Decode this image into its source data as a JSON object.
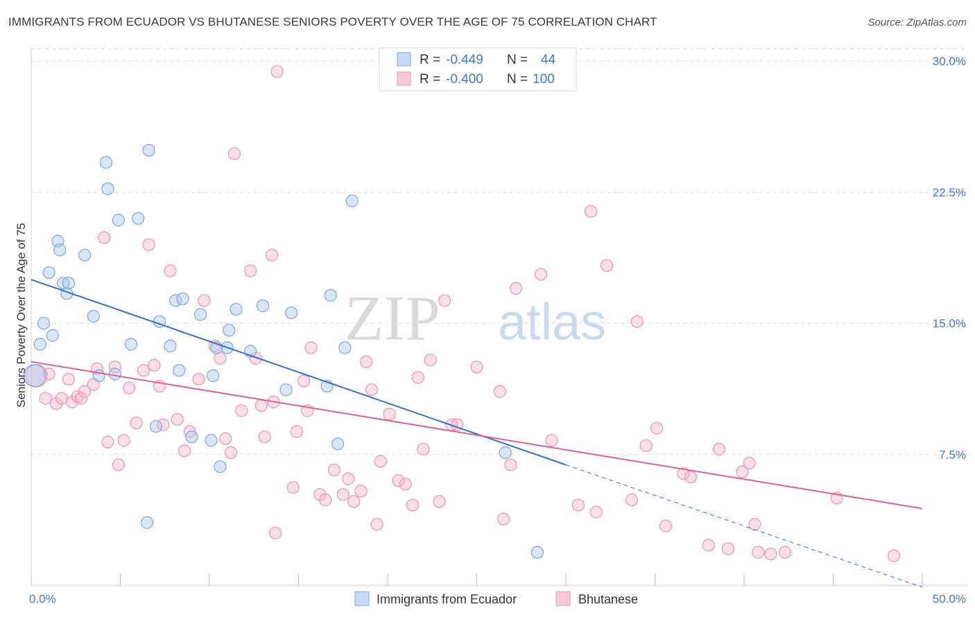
{
  "title": "IMMIGRANTS FROM ECUADOR VS BHUTANESE SENIORS POVERTY OVER THE AGE OF 75 CORRELATION CHART",
  "source": "Source: ZipAtlas.com",
  "watermark": {
    "zip": "ZIP",
    "atlas": "atlas"
  },
  "colors": {
    "blue_fill": "#a9c8f0",
    "blue_stroke": "#7aa7df",
    "blue_line": "#2f6fd0",
    "pink_fill": "#f5b8cb",
    "pink_stroke": "#ec93b0",
    "pink_line": "#e06090",
    "accent_text": "#3f78c8",
    "grid": "#dcdcdc"
  },
  "legend": {
    "row1": {
      "r_label": "R =",
      "r_value": "-0.449",
      "n_label": "N =",
      "n_value": "44"
    },
    "row2": {
      "r_label": "R =",
      "r_value": "-0.400",
      "n_label": "N =",
      "n_value": "100"
    }
  },
  "bottom_legend": {
    "series1": "Immigrants from Ecuador",
    "series2": "Bhutanese"
  },
  "chart_data": {
    "type": "scatter",
    "title": "IMMIGRANTS FROM ECUADOR VS BHUTANESE SENIORS POVERTY OVER THE AGE OF 75 CORRELATION CHART",
    "xlabel": "",
    "ylabel": "Seniors Poverty Over the Age of 75",
    "xlim": [
      0,
      50
    ],
    "ylim": [
      0,
      30.8
    ],
    "x_tick_labels": [
      {
        "value": 0,
        "label": "0.0%"
      },
      {
        "value": 50,
        "label": "50.0%"
      }
    ],
    "y_ticks": [
      {
        "value": 7.5,
        "label": "7.5%"
      },
      {
        "value": 15,
        "label": "15.0%"
      },
      {
        "value": 22.5,
        "label": "22.5%"
      },
      {
        "value": 30,
        "label": "30.0%"
      }
    ],
    "grid": true,
    "legend_position": "top-center",
    "series": [
      {
        "name": "Immigrants from Ecuador",
        "r": -0.449,
        "n": 44,
        "trend": {
          "x0": 0,
          "y0": 17.5,
          "x1": 30,
          "y1": 6.9,
          "dashed_to": {
            "x": 50,
            "y": -0.1
          }
        },
        "points": [
          [
            0.2,
            12.0,
            3
          ],
          [
            0.5,
            13.8,
            1
          ],
          [
            0.7,
            15.0,
            1
          ],
          [
            1.0,
            17.9,
            1
          ],
          [
            1.2,
            14.3,
            1
          ],
          [
            1.5,
            19.7,
            1
          ],
          [
            1.6,
            19.2,
            1
          ],
          [
            1.8,
            17.3,
            1
          ],
          [
            2.0,
            16.7,
            1
          ],
          [
            2.1,
            17.3,
            1
          ],
          [
            3.0,
            18.9,
            1
          ],
          [
            3.5,
            15.4,
            1
          ],
          [
            3.8,
            12.0,
            1
          ],
          [
            4.2,
            24.2,
            1
          ],
          [
            4.3,
            22.7,
            1
          ],
          [
            4.7,
            12.1,
            1
          ],
          [
            4.9,
            20.9,
            1
          ],
          [
            5.6,
            13.8,
            1
          ],
          [
            6.0,
            21.0,
            1
          ],
          [
            6.5,
            3.6,
            1
          ],
          [
            6.6,
            24.9,
            1
          ],
          [
            7.0,
            9.1,
            1
          ],
          [
            7.2,
            15.1,
            1
          ],
          [
            7.8,
            13.7,
            1
          ],
          [
            8.1,
            16.3,
            1
          ],
          [
            8.3,
            12.3,
            1
          ],
          [
            8.5,
            16.4,
            1
          ],
          [
            9.0,
            8.5,
            1
          ],
          [
            9.5,
            15.5,
            1
          ],
          [
            10.1,
            8.3,
            1
          ],
          [
            10.2,
            12.0,
            1
          ],
          [
            10.4,
            13.6,
            1
          ],
          [
            10.6,
            6.8,
            1
          ],
          [
            11.0,
            13.6,
            1
          ],
          [
            11.1,
            14.6,
            1
          ],
          [
            11.5,
            15.8,
            1
          ],
          [
            12.3,
            13.4,
            1
          ],
          [
            13.0,
            16.0,
            1
          ],
          [
            14.3,
            11.2,
            1
          ],
          [
            14.6,
            15.6,
            1
          ],
          [
            16.6,
            11.4,
            1
          ],
          [
            16.8,
            16.6,
            1
          ],
          [
            17.2,
            8.1,
            1
          ],
          [
            17.6,
            13.6,
            1
          ],
          [
            18.0,
            22.0,
            1
          ],
          [
            26.6,
            7.6,
            1
          ],
          [
            28.4,
            1.9,
            1
          ]
        ]
      },
      {
        "name": "Bhutanese",
        "r": -0.4,
        "n": 100,
        "trend": {
          "x0": 0,
          "y0": 12.8,
          "x1": 50,
          "y1": 4.4
        },
        "points": [
          [
            0.3,
            12.0,
            3
          ],
          [
            0.8,
            10.7,
            1
          ],
          [
            1.0,
            12.1,
            1
          ],
          [
            1.4,
            10.4,
            1
          ],
          [
            1.7,
            10.7,
            1
          ],
          [
            2.1,
            11.8,
            1
          ],
          [
            2.3,
            10.5,
            1
          ],
          [
            2.6,
            10.8,
            1
          ],
          [
            2.8,
            10.7,
            1
          ],
          [
            3.0,
            11.1,
            1
          ],
          [
            3.5,
            11.5,
            1
          ],
          [
            3.7,
            12.4,
            1
          ],
          [
            4.1,
            19.9,
            1
          ],
          [
            4.3,
            8.2,
            1
          ],
          [
            4.7,
            12.5,
            1
          ],
          [
            4.9,
            6.9,
            1
          ],
          [
            5.2,
            8.3,
            1
          ],
          [
            5.5,
            11.3,
            1
          ],
          [
            5.9,
            9.3,
            1
          ],
          [
            6.3,
            12.3,
            1
          ],
          [
            6.6,
            19.5,
            1
          ],
          [
            6.9,
            12.6,
            1
          ],
          [
            7.2,
            11.4,
            1
          ],
          [
            7.4,
            9.2,
            1
          ],
          [
            7.8,
            18.0,
            1
          ],
          [
            8.2,
            9.5,
            1
          ],
          [
            8.6,
            7.7,
            1
          ],
          [
            8.9,
            8.8,
            1
          ],
          [
            9.4,
            11.8,
            1
          ],
          [
            9.7,
            16.3,
            1
          ],
          [
            10.3,
            13.7,
            1
          ],
          [
            10.6,
            13.0,
            1
          ],
          [
            10.9,
            8.4,
            1
          ],
          [
            11.2,
            7.6,
            1
          ],
          [
            11.4,
            24.7,
            1
          ],
          [
            11.8,
            10.0,
            1
          ],
          [
            12.3,
            18.0,
            1
          ],
          [
            12.6,
            13.0,
            1
          ],
          [
            12.9,
            10.3,
            1
          ],
          [
            13.1,
            8.5,
            1
          ],
          [
            13.5,
            18.9,
            1
          ],
          [
            13.6,
            10.5,
            1
          ],
          [
            13.7,
            3.0,
            1
          ],
          [
            13.8,
            29.4,
            1
          ],
          [
            14.7,
            5.6,
            1
          ],
          [
            14.9,
            8.8,
            1
          ],
          [
            15.3,
            11.7,
            1
          ],
          [
            15.5,
            10.0,
            1
          ],
          [
            15.7,
            13.6,
            1
          ],
          [
            16.2,
            5.2,
            1
          ],
          [
            16.5,
            4.9,
            1
          ],
          [
            17.0,
            6.6,
            1
          ],
          [
            17.5,
            5.2,
            1
          ],
          [
            17.8,
            6.1,
            1
          ],
          [
            18.1,
            4.8,
            1
          ],
          [
            18.5,
            5.4,
            1
          ],
          [
            18.8,
            12.8,
            1
          ],
          [
            19.1,
            11.2,
            1
          ],
          [
            19.4,
            3.5,
            1
          ],
          [
            19.6,
            7.1,
            1
          ],
          [
            20.1,
            9.8,
            1
          ],
          [
            20.6,
            6.0,
            1
          ],
          [
            21.0,
            5.8,
            1
          ],
          [
            21.4,
            4.6,
            1
          ],
          [
            21.7,
            11.9,
            1
          ],
          [
            22.0,
            7.8,
            1
          ],
          [
            22.4,
            12.9,
            1
          ],
          [
            22.9,
            4.8,
            1
          ],
          [
            23.2,
            16.3,
            1
          ],
          [
            23.6,
            9.2,
            1
          ],
          [
            23.9,
            9.2,
            1
          ],
          [
            25.0,
            12.5,
            1
          ],
          [
            26.3,
            11.1,
            1
          ],
          [
            26.5,
            3.8,
            1
          ],
          [
            26.9,
            6.9,
            1
          ],
          [
            27.2,
            17.0,
            1
          ],
          [
            28.6,
            17.8,
            1
          ],
          [
            29.2,
            8.3,
            1
          ],
          [
            30.7,
            4.6,
            1
          ],
          [
            31.4,
            21.4,
            1
          ],
          [
            31.7,
            4.2,
            1
          ],
          [
            32.3,
            18.3,
            1
          ],
          [
            33.7,
            4.9,
            1
          ],
          [
            34.0,
            15.1,
            1
          ],
          [
            34.5,
            8.0,
            1
          ],
          [
            35.1,
            9.0,
            1
          ],
          [
            35.6,
            3.4,
            1
          ],
          [
            36.6,
            6.4,
            1
          ],
          [
            37.0,
            6.2,
            1
          ],
          [
            38.0,
            2.3,
            1
          ],
          [
            38.6,
            7.8,
            1
          ],
          [
            39.1,
            2.1,
            1
          ],
          [
            39.9,
            6.5,
            1
          ],
          [
            40.3,
            7.0,
            1
          ],
          [
            40.6,
            3.5,
            1
          ],
          [
            40.8,
            1.9,
            1
          ],
          [
            41.5,
            1.8,
            1
          ],
          [
            42.3,
            1.9,
            1
          ],
          [
            45.2,
            5.0,
            1
          ],
          [
            48.4,
            1.7,
            1
          ]
        ]
      }
    ]
  }
}
